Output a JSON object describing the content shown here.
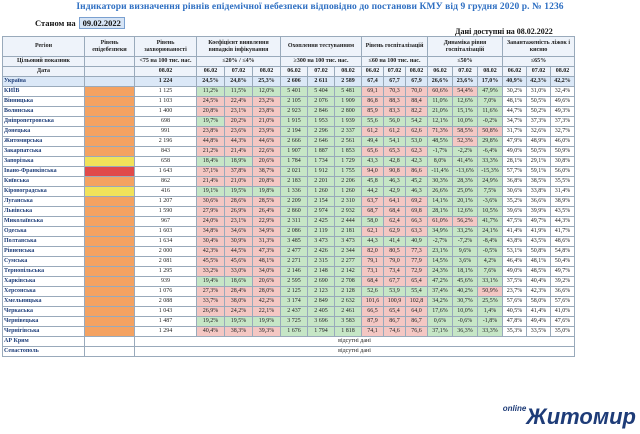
{
  "title": "Індикатори визначення рівнів епідемічної небезпеки відповідно до постанови КМУ від 9 грудня 2020 р. № 1236",
  "status_label": "Станом на",
  "status_date": "09.02.2022",
  "available_label": "Дані доступні на 08.02.2022",
  "headers": {
    "region": "Регіон",
    "level": "Рівень епідебезпеки",
    "incidence": "Рівень захворюваності",
    "coef": "Коефіцієнт виявлення випадків інфікування",
    "testing": "Охоплення тестуванням",
    "hosp": "Рівень госпіталізацій",
    "dyn": "Динаміка рівня госпіталізацій",
    "beds": "Завантаженість ліжок і кисню",
    "target": "Цільовий показник",
    "date": "Дата",
    "t_incidence": "<75 на 100 тис. нас.",
    "t_coef": "≤20% / ≤4%",
    "t_testing": "≥300 на 100 тис. нас.",
    "t_hosp": "≤60 на 100 тис. нас.",
    "t_dyn": "≤50%",
    "t_beds": "≤65%"
  },
  "dates": [
    "08.02",
    "06.02",
    "07.02",
    "08.02",
    "06.02",
    "07.02",
    "08.02",
    "06.02",
    "07.02",
    "08.02",
    "06.02",
    "07.02",
    "08.02",
    "06.02",
    "07.02",
    "08.02"
  ],
  "rows": [
    {
      "name": "Україна",
      "lvl": "",
      "v": [
        "1 224",
        "24,5%",
        "24,8%",
        "25,3%",
        "2 606",
        "2 611",
        "2 589",
        "67,4",
        "67,7",
        "67,9",
        "26,6%",
        "23,6%",
        "17,0%",
        "40,9%",
        "42,3%",
        "42,2%"
      ]
    },
    {
      "name": "КИЇВ",
      "lvl": "o",
      "v": [
        "1 125",
        "11,2%",
        "11,5%",
        "12,0%",
        "5 401",
        "5 404",
        "5 481",
        "69,1",
        "70,3",
        "70,0",
        "60,6%",
        "54,4%",
        "47,9%",
        "30,2%",
        "31,0%",
        "32,4%"
      ]
    },
    {
      "name": "Вінницька",
      "lvl": "o",
      "v": [
        "1 103",
        "24,5%",
        "22,4%",
        "23,2%",
        "2 105",
        "2 076",
        "1 909",
        "86,8",
        "88,3",
        "88,4",
        "11,0%",
        "12,6%",
        "7,0%",
        "48,1%",
        "50,5%",
        "49,6%"
      ]
    },
    {
      "name": "Волинська",
      "lvl": "o",
      "v": [
        "1 400",
        "20,8%",
        "23,1%",
        "23,8%",
        "2 923",
        "2 846",
        "2 800",
        "85,9",
        "83,3",
        "82,2",
        "21,0%",
        "15,1%",
        "11,6%",
        "44,7%",
        "50,2%",
        "49,3%"
      ]
    },
    {
      "name": "Дніпропетровська",
      "lvl": "o",
      "v": [
        "698",
        "19,7%",
        "20,2%",
        "21,0%",
        "1 915",
        "1 953",
        "1 939",
        "55,6",
        "56,0",
        "54,2",
        "12,1%",
        "10,0%",
        "-0,2%",
        "34,7%",
        "37,3%",
        "37,3%"
      ]
    },
    {
      "name": "Донецька",
      "lvl": "o",
      "v": [
        "991",
        "23,8%",
        "23,6%",
        "23,9%",
        "2 194",
        "2 296",
        "2 337",
        "61,2",
        "61,2",
        "62,6",
        "71,3%",
        "58,5%",
        "50,8%",
        "31,7%",
        "32,6%",
        "32,7%"
      ]
    },
    {
      "name": "Житомирська",
      "lvl": "o",
      "v": [
        "2 196",
        "44,8%",
        "44,3%",
        "44,6%",
        "2 666",
        "2 646",
        "2 561",
        "49,4",
        "54,1",
        "53,0",
        "48,5%",
        "52,3%",
        "29,8%",
        "47,9%",
        "48,9%",
        "46,0%"
      ]
    },
    {
      "name": "Закарпатська",
      "lvl": "o",
      "v": [
        "843",
        "21,2%",
        "21,4%",
        "22,6%",
        "1 907",
        "1 887",
        "1 853",
        "65,6",
        "65,3",
        "62,3",
        "-1,7%",
        "-2,2%",
        "-6,4%",
        "49,0%",
        "50,5%",
        "50,9%"
      ]
    },
    {
      "name": "Запорізька",
      "lvl": "y",
      "v": [
        "658",
        "18,4%",
        "18,9%",
        "20,6%",
        "1 784",
        "1 734",
        "1 729",
        "43,3",
        "42,8",
        "42,3",
        "8,0%",
        "41,4%",
        "33,3%",
        "28,1%",
        "29,1%",
        "30,8%"
      ]
    },
    {
      "name": "Івано-Франківська",
      "lvl": "r",
      "v": [
        "1 643",
        "37,1%",
        "37,8%",
        "38,7%",
        "2 021",
        "1 912",
        "1 755",
        "94,0",
        "90,8",
        "86,6",
        "-11,4%",
        "-13,6%",
        "-15,3%",
        "57,7%",
        "59,1%",
        "56,0%"
      ]
    },
    {
      "name": "Київська",
      "lvl": "o",
      "v": [
        "862",
        "21,4%",
        "21,0%",
        "20,8%",
        "2 183",
        "2 201",
        "2 206",
        "45,8",
        "46,3",
        "45,2",
        "30,3%",
        "28,3%",
        "24,9%",
        "36,8%",
        "38,5%",
        "35,5%"
      ]
    },
    {
      "name": "Кіровоградська",
      "lvl": "y",
      "v": [
        "416",
        "19,1%",
        "19,5%",
        "19,8%",
        "1 336",
        "1 260",
        "1 260",
        "44,2",
        "42,9",
        "46,3",
        "26,6%",
        "25,0%",
        "7,5%",
        "30,6%",
        "33,8%",
        "31,4%"
      ]
    },
    {
      "name": "Луганська",
      "lvl": "o",
      "v": [
        "1 207",
        "30,6%",
        "28,6%",
        "28,5%",
        "2 209",
        "2 154",
        "2 310",
        "63,7",
        "64,1",
        "69,2",
        "14,1%",
        "20,1%",
        "-3,6%",
        "35,2%",
        "36,6%",
        "38,9%"
      ]
    },
    {
      "name": "Львівська",
      "lvl": "o",
      "v": [
        "1 590",
        "27,9%",
        "26,9%",
        "26,4%",
        "2 860",
        "2 974",
        "2 932",
        "68,7",
        "68,4",
        "69,8",
        "28,1%",
        "12,6%",
        "10,5%",
        "39,6%",
        "39,9%",
        "43,5%"
      ]
    },
    {
      "name": "Миколаївська",
      "lvl": "o",
      "v": [
        "967",
        "24,0%",
        "23,1%",
        "22,9%",
        "2 311",
        "2 425",
        "2 444",
        "58,0",
        "62,4",
        "66,3",
        "61,0%",
        "56,2%",
        "41,7%",
        "47,5%",
        "49,7%",
        "44,3%"
      ]
    },
    {
      "name": "Одеська",
      "lvl": "o",
      "v": [
        "1 603",
        "34,8%",
        "34,6%",
        "34,9%",
        "2 086",
        "2 119",
        "2 181",
        "62,1",
        "62,9",
        "63,3",
        "34,9%",
        "33,2%",
        "24,1%",
        "41,4%",
        "41,9%",
        "41,7%"
      ]
    },
    {
      "name": "Полтавська",
      "lvl": "o",
      "v": [
        "1 634",
        "30,4%",
        "30,9%",
        "31,3%",
        "3 485",
        "3 473",
        "3 473",
        "44,3",
        "41,4",
        "40,9",
        "-2,7%",
        "-7,2%",
        "-8,4%",
        "43,8%",
        "43,5%",
        "48,6%"
      ]
    },
    {
      "name": "Рівненська",
      "lvl": "o",
      "v": [
        "2 000",
        "42,3%",
        "44,5%",
        "47,3%",
        "2 477",
        "2 426",
        "2 344",
        "82,0",
        "80,5",
        "77,3",
        "23,1%",
        "9,6%",
        "-0,5%",
        "53,1%",
        "50,8%",
        "54,8%"
      ]
    },
    {
      "name": "Сумська",
      "lvl": "o",
      "v": [
        "2 081",
        "45,5%",
        "45,6%",
        "48,1%",
        "2 271",
        "2 315",
        "2 277",
        "79,1",
        "79,0",
        "77,9",
        "14,5%",
        "3,6%",
        "4,2%",
        "46,4%",
        "48,1%",
        "50,4%"
      ]
    },
    {
      "name": "Тернопільська",
      "lvl": "o",
      "v": [
        "1 295",
        "33,2%",
        "33,0%",
        "34,0%",
        "2 146",
        "2 148",
        "2 142",
        "73,1",
        "73,4",
        "72,9",
        "24,3%",
        "18,1%",
        "7,6%",
        "49,0%",
        "48,5%",
        "49,7%"
      ]
    },
    {
      "name": "Харківська",
      "lvl": "o",
      "v": [
        "939",
        "19,4%",
        "18,6%",
        "20,6%",
        "2 595",
        "2 690",
        "2 708",
        "68,4",
        "67,7",
        "65,4",
        "47,2%",
        "45,6%",
        "33,1%",
        "37,5%",
        "40,4%",
        "39,2%"
      ]
    },
    {
      "name": "Херсонська",
      "lvl": "o",
      "v": [
        "1 076",
        "27,3%",
        "28,4%",
        "28,0%",
        "2 125",
        "2 123",
        "2 128",
        "52,6",
        "53,9",
        "55,4",
        "37,4%",
        "40,2%",
        "50,9%",
        "23,7%",
        "42,3%",
        "36,6%"
      ]
    },
    {
      "name": "Хмельницька",
      "lvl": "o",
      "v": [
        "2 088",
        "33,7%",
        "38,0%",
        "42,2%",
        "3 174",
        "2 849",
        "2 632",
        "101,6",
        "100,9",
        "102,8",
        "34,2%",
        "30,7%",
        "25,5%",
        "57,6%",
        "58,0%",
        "57,6%"
      ]
    },
    {
      "name": "Черкаська",
      "lvl": "o",
      "v": [
        "1 043",
        "26,9%",
        "24,2%",
        "22,1%",
        "2 437",
        "2 405",
        "2 461",
        "66,5",
        "65,4",
        "64,0",
        "17,6%",
        "10,0%",
        "1,4%",
        "40,5%",
        "41,4%",
        "41,0%"
      ]
    },
    {
      "name": "Чернівецька",
      "lvl": "o",
      "v": [
        "1 487",
        "19,2%",
        "19,5%",
        "19,9%",
        "3 725",
        "3 696",
        "3 583",
        "87,9",
        "86,7",
        "86,7",
        "0,6%",
        "-0,6%",
        "-1,8%",
        "47,8%",
        "49,4%",
        "47,6%"
      ]
    },
    {
      "name": "Чернігівська",
      "lvl": "o",
      "v": [
        "1 294",
        "40,4%",
        "38,3%",
        "39,3%",
        "1 676",
        "1 794",
        "1 818",
        "74,1",
        "74,6",
        "76,6",
        "37,1%",
        "36,3%",
        "33,3%",
        "35,3%",
        "33,5%",
        "35,0%"
      ]
    },
    {
      "name": "АР Крим",
      "lvl": "",
      "na": "відсутні дані"
    },
    {
      "name": "Севастополь",
      "lvl": "",
      "na": "відсутні дані"
    }
  ],
  "logo_small": "online",
  "logo_big": "Житомир"
}
